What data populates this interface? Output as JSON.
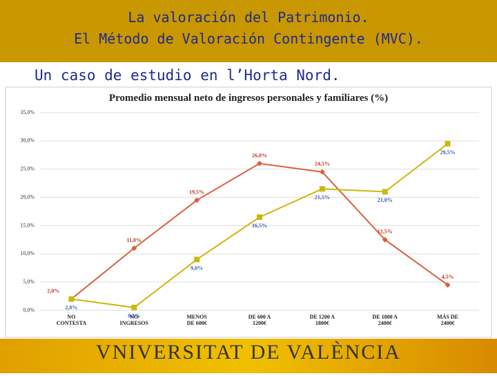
{
  "header": {
    "title_line1": "La valoración del Patrimonio.",
    "title_line2": "El Método de Valoración Contingente (MVC).",
    "subtitle": "Un caso de estudio en l’Horta Nord."
  },
  "footer": {
    "logo": "VNIVERSITAT DE VALÈNCIA"
  },
  "chart_data": {
    "type": "line",
    "title": "Promedio mensual neto de ingresos personales y familiares (%)",
    "categories": [
      "NO\nCONTESTA",
      "NO\nINGRESOS",
      "MENOS\nDE 600€",
      "DE 600 A\n1200€",
      "DE 1200 A\n1800€",
      "DE 1800 A\n2400€",
      "MÁS DE\n2400€"
    ],
    "series": [
      {
        "color": "#d9603b",
        "values": [
          2.0,
          11.0,
          19.5,
          26.0,
          24.5,
          12.5,
          4.5
        ],
        "value_labels": [
          "2,0%",
          "11,0%",
          "19,5%",
          "26,0%",
          "24,5%",
          "12,5%",
          "4,5%"
        ]
      },
      {
        "color": "#cbb80c",
        "values": [
          2.0,
          0.5,
          9.0,
          16.5,
          21.5,
          21.0,
          29.5
        ],
        "value_labels": [
          "2,0%",
          "0,5%",
          "9,0%",
          "16,5%",
          "21,5%",
          "21,0%",
          "29,5%"
        ]
      }
    ],
    "ylim": [
      0,
      35
    ],
    "yticks": [
      {
        "value": 0,
        "label": "0,0%"
      },
      {
        "value": 5,
        "label": "5,0%"
      },
      {
        "value": 10,
        "label": "10,0%"
      },
      {
        "value": 15,
        "label": "15,0%"
      },
      {
        "value": 20,
        "label": "20,0%"
      },
      {
        "value": 25,
        "label": "25,0%"
      },
      {
        "value": 30,
        "label": "30,0%"
      },
      {
        "value": 35,
        "label": "35,0%"
      }
    ],
    "grid": true
  }
}
